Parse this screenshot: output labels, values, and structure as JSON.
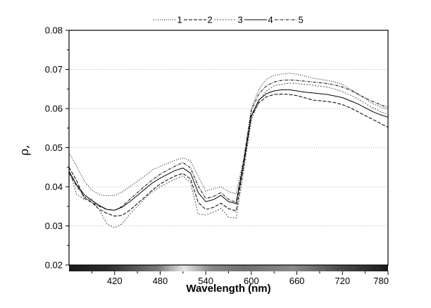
{
  "chart_data": {
    "type": "line",
    "xlabel": "Wavelength (nm)",
    "ylabel": "ρ,",
    "xlim": [
      360,
      780
    ],
    "ylim": [
      0.02,
      0.08
    ],
    "x_ticks": [
      420,
      480,
      540,
      600,
      660,
      720,
      780
    ],
    "y_ticks": [
      0.02,
      0.03,
      0.04,
      0.05,
      0.06,
      0.07,
      0.08
    ],
    "x_tick_labels": [
      "420",
      "480",
      "540",
      "600",
      "660",
      "720",
      "780"
    ],
    "y_tick_labels": [
      "0.02",
      "0.03",
      "0.04",
      "0.05",
      "0.06",
      "0.07",
      "0.08"
    ],
    "grid": "horizontal dotted",
    "legend_placement": "top",
    "legend_entries": [
      "1",
      "2",
      "3",
      "4",
      "5"
    ],
    "x": [
      360,
      370,
      380,
      390,
      400,
      410,
      420,
      430,
      440,
      450,
      460,
      470,
      480,
      490,
      500,
      510,
      520,
      530,
      540,
      550,
      560,
      570,
      580,
      590,
      600,
      610,
      620,
      630,
      640,
      650,
      660,
      670,
      680,
      690,
      700,
      710,
      720,
      730,
      740,
      750,
      760,
      770,
      780
    ],
    "series": [
      {
        "name": "1",
        "values": [
          0.0487,
          0.0452,
          0.0415,
          0.0391,
          0.038,
          0.0377,
          0.0378,
          0.0387,
          0.04,
          0.0414,
          0.0428,
          0.0443,
          0.0452,
          0.046,
          0.0468,
          0.0474,
          0.0466,
          0.0427,
          0.0389,
          0.0395,
          0.04,
          0.0388,
          0.0382,
          0.0475,
          0.06,
          0.065,
          0.0675,
          0.0685,
          0.0688,
          0.069,
          0.0688,
          0.0683,
          0.0678,
          0.0675,
          0.0672,
          0.0668,
          0.0662,
          0.065,
          0.0638,
          0.0625,
          0.0612,
          0.0605,
          0.0598
        ],
        "color": "#000000",
        "dash": "1,2"
      },
      {
        "name": "2",
        "values": [
          0.045,
          0.0416,
          0.037,
          0.036,
          0.0342,
          0.0332,
          0.0325,
          0.0327,
          0.034,
          0.0357,
          0.0374,
          0.0392,
          0.0407,
          0.0418,
          0.0428,
          0.0434,
          0.042,
          0.036,
          0.0342,
          0.0347,
          0.0358,
          0.0344,
          0.0338,
          0.0455,
          0.058,
          0.0615,
          0.063,
          0.0636,
          0.0637,
          0.0636,
          0.0633,
          0.0628,
          0.0622,
          0.062,
          0.0618,
          0.0615,
          0.061,
          0.0602,
          0.0592,
          0.0582,
          0.0572,
          0.0562,
          0.0552
        ],
        "color": "#000000",
        "dash": "5,2"
      },
      {
        "name": "3",
        "values": [
          0.0445,
          0.038,
          0.0368,
          0.0368,
          0.034,
          0.0305,
          0.0295,
          0.0305,
          0.033,
          0.035,
          0.037,
          0.0388,
          0.04,
          0.041,
          0.042,
          0.0428,
          0.041,
          0.033,
          0.0328,
          0.0335,
          0.0345,
          0.0322,
          0.032,
          0.044,
          0.057,
          0.062,
          0.0645,
          0.0658,
          0.0662,
          0.0665,
          0.0664,
          0.0662,
          0.066,
          0.0657,
          0.0655,
          0.065,
          0.0643,
          0.0635,
          0.0625,
          0.0613,
          0.0602,
          0.0592,
          0.0585
        ],
        "color": "#555555",
        "dash": "2,2"
      },
      {
        "name": "4",
        "values": [
          0.044,
          0.0405,
          0.038,
          0.0365,
          0.0352,
          0.0342,
          0.034,
          0.0348,
          0.0362,
          0.0378,
          0.0394,
          0.041,
          0.0422,
          0.0432,
          0.0442,
          0.0448,
          0.0435,
          0.0385,
          0.0362,
          0.0367,
          0.0378,
          0.0362,
          0.0357,
          0.046,
          0.0582,
          0.0622,
          0.0638,
          0.0645,
          0.0648,
          0.0648,
          0.0645,
          0.0642,
          0.064,
          0.0638,
          0.0636,
          0.0632,
          0.0628,
          0.062,
          0.0612,
          0.0602,
          0.0592,
          0.0584,
          0.0578
        ],
        "color": "#000000",
        "dash": ""
      },
      {
        "name": "5",
        "values": [
          0.0435,
          0.0402,
          0.0375,
          0.036,
          0.035,
          0.0342,
          0.034,
          0.035,
          0.0368,
          0.0385,
          0.0402,
          0.0418,
          0.0432,
          0.0443,
          0.0453,
          0.0462,
          0.0448,
          0.0402,
          0.037,
          0.0375,
          0.0385,
          0.0368,
          0.036,
          0.0468,
          0.0595,
          0.0638,
          0.0658,
          0.0668,
          0.0672,
          0.0673,
          0.0672,
          0.067,
          0.0668,
          0.0666,
          0.0664,
          0.066,
          0.0655,
          0.0647,
          0.0637,
          0.0627,
          0.0618,
          0.061,
          0.0603
        ],
        "color": "#000000",
        "dash": "4,1.5,1,1.5"
      }
    ]
  }
}
